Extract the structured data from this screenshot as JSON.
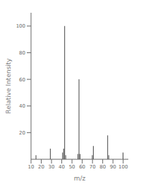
{
  "chart_data": {
    "type": "bar",
    "xlabel": "m/z",
    "ylabel": "Relative Intensity",
    "x": [
      15,
      29,
      41,
      42,
      43,
      44,
      56,
      57,
      58,
      70,
      71,
      85,
      86,
      100
    ],
    "values": [
      3,
      8,
      5,
      8,
      100,
      3,
      4,
      60,
      4,
      3,
      10,
      18,
      3,
      5
    ],
    "color": "#444444",
    "xlim": [
      10,
      105
    ],
    "ylim": [
      0,
      110
    ],
    "xticks": [
      10,
      20,
      30,
      40,
      50,
      60,
      70,
      80,
      90,
      100
    ],
    "yticks": [
      20,
      40,
      60,
      80,
      100
    ]
  }
}
